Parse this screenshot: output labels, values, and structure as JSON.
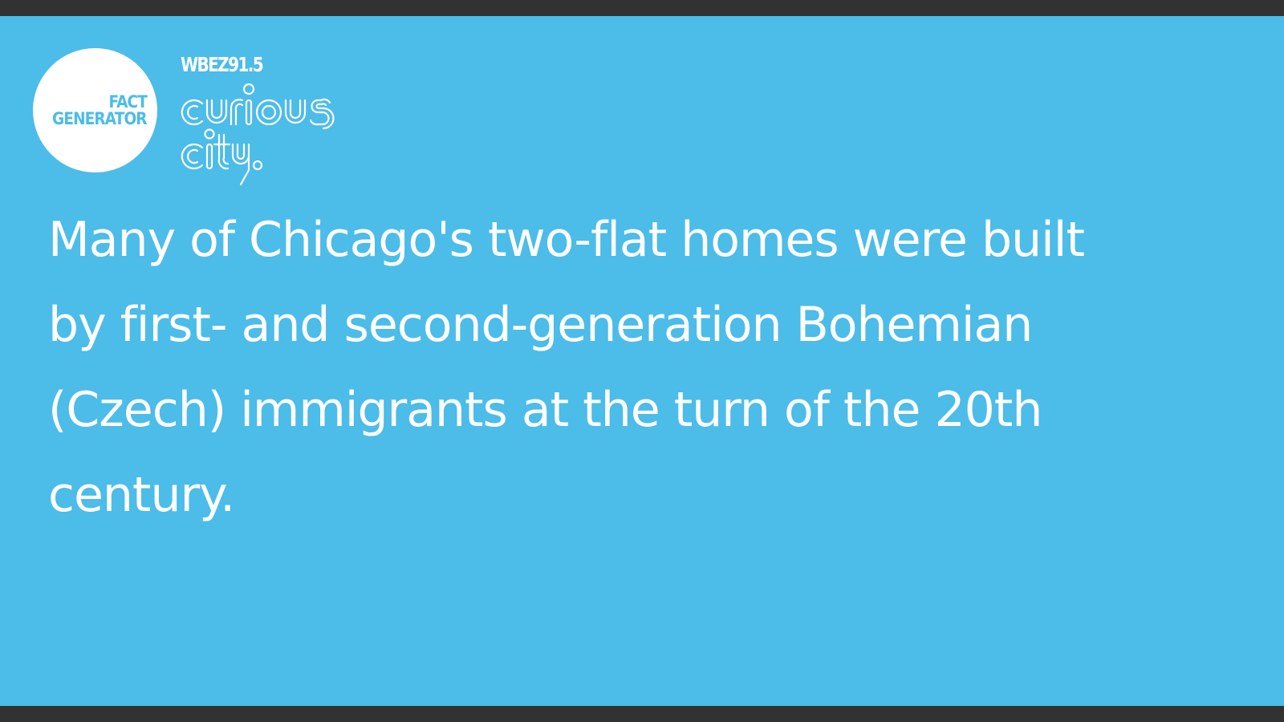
{
  "badge": {
    "line1": "FACT",
    "line2": "GENERATOR"
  },
  "brand": {
    "station": "WBEZ91.5",
    "word1": "curious",
    "word2": "city.",
    "logo_name": "curious-city-logo"
  },
  "fact": {
    "text": "Many of Chicago's two-flat homes were built by first- and second-generation Bohemian (Czech) immigrants at the turn of the 20th century."
  },
  "colors": {
    "background": "#4cbce8",
    "frame": "#323232",
    "text": "#ffffff"
  }
}
